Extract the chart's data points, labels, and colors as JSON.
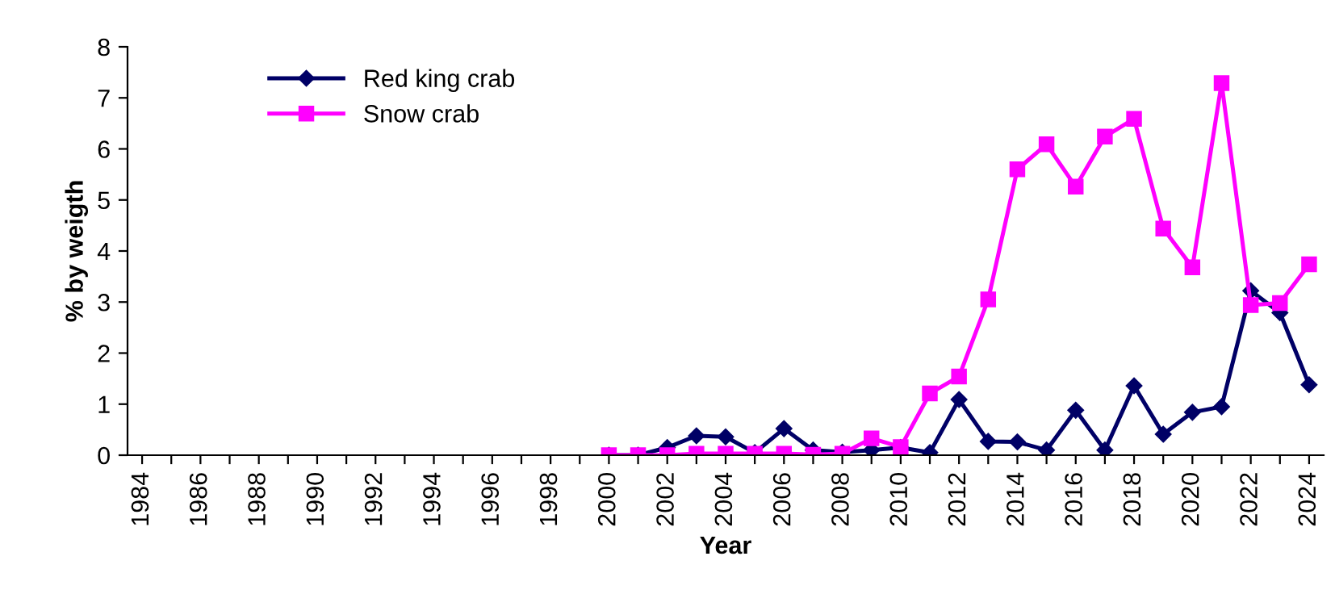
{
  "chart_data": {
    "type": "line",
    "xlabel": "Year",
    "ylabel": "% by weigth",
    "x": [
      2000,
      2001,
      2002,
      2003,
      2004,
      2005,
      2006,
      2007,
      2008,
      2009,
      2010,
      2011,
      2012,
      2013,
      2014,
      2015,
      2016,
      2017,
      2018,
      2019,
      2020,
      2021,
      2022,
      2023,
      2024
    ],
    "series": [
      {
        "name": "Red king crab",
        "color": "#000066",
        "marker": "diamond",
        "values": [
          0,
          0,
          0.15,
          0.38,
          0.36,
          0.05,
          0.52,
          0.1,
          0.06,
          0.1,
          0.15,
          0.05,
          1.09,
          0.27,
          0.26,
          0.1,
          0.88,
          0.1,
          1.36,
          0.41,
          0.84,
          0.95,
          3.22,
          2.79,
          1.38
        ]
      },
      {
        "name": "Snow crab",
        "color": "#ff00ff",
        "marker": "square",
        "values": [
          0,
          0,
          0,
          0.03,
          0.03,
          0.03,
          0.03,
          0.01,
          0.03,
          0.33,
          0.16,
          1.21,
          1.54,
          3.05,
          5.6,
          6.09,
          5.26,
          6.24,
          6.59,
          4.44,
          3.68,
          7.29,
          2.94,
          2.98,
          3.74
        ]
      }
    ],
    "xlim": [
      1983.5,
      2024.5
    ],
    "xticks": [
      1984,
      {
        "value": 1985,
        "label": null
      },
      1986,
      {
        "value": 1987,
        "label": null
      },
      1988,
      {
        "value": 1989,
        "label": null
      },
      1990,
      {
        "value": 1991,
        "label": null
      },
      1992,
      {
        "value": 1993,
        "label": null
      },
      1994,
      {
        "value": 1995,
        "label": null
      },
      1996,
      {
        "value": 1997,
        "label": null
      },
      1998,
      {
        "value": 1999,
        "label": null
      },
      2000,
      {
        "value": 2001,
        "label": null
      },
      2002,
      {
        "value": 2003,
        "label": null
      },
      2004,
      {
        "value": 2005,
        "label": null
      },
      2006,
      {
        "value": 2007,
        "label": null
      },
      2008,
      {
        "value": 2009,
        "label": null
      },
      2010,
      {
        "value": 2011,
        "label": null
      },
      2012,
      {
        "value": 2013,
        "label": null
      },
      2014,
      {
        "value": 2015,
        "label": null
      },
      2016,
      {
        "value": 2017,
        "label": null
      },
      2018,
      {
        "value": 2019,
        "label": null
      },
      2020,
      {
        "value": 2021,
        "label": null
      },
      2022,
      {
        "value": 2023,
        "label": null
      },
      2024
    ],
    "ylim": [
      0,
      8
    ],
    "yticks": [
      0,
      1,
      2,
      3,
      4,
      5,
      6,
      7,
      8
    ],
    "grid": false,
    "legend": "top left",
    "line_style": "solid"
  }
}
